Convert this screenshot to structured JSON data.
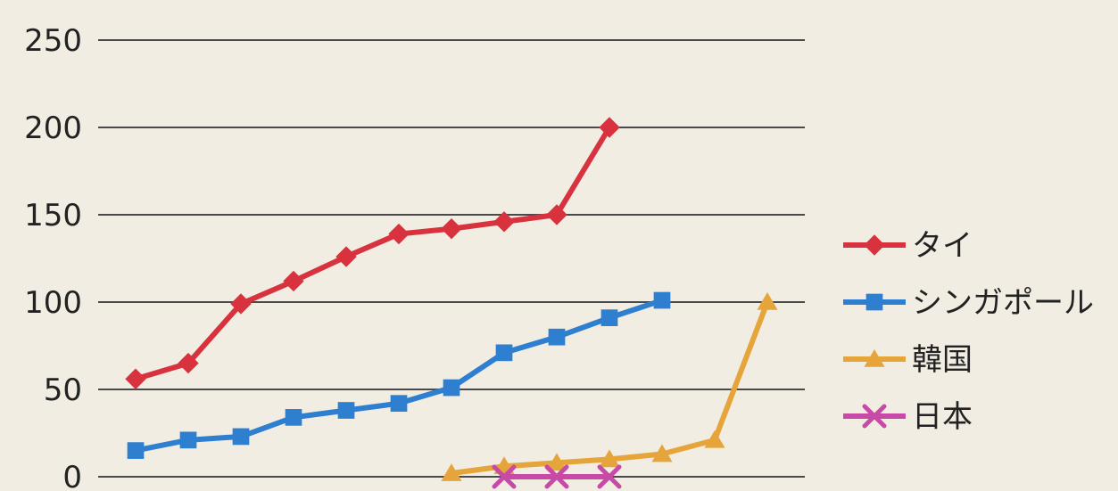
{
  "chart_data": {
    "type": "line",
    "title": "",
    "xlabel": "",
    "ylabel": "",
    "ylim": [
      0,
      250
    ],
    "yticks": [
      0,
      50,
      100,
      150,
      200,
      250
    ],
    "grid": true,
    "legend_position": "right",
    "x": [
      1,
      2,
      3,
      4,
      5,
      6,
      7,
      8,
      9,
      10,
      11,
      12,
      13
    ],
    "series": [
      {
        "name": "タイ",
        "marker": "diamond",
        "color": "#d8323f",
        "values": [
          56,
          65,
          99,
          112,
          126,
          139,
          142,
          146,
          150,
          200,
          null,
          null,
          null
        ]
      },
      {
        "name": "シンガポール",
        "marker": "square",
        "color": "#2f7fd0",
        "values": [
          15,
          21,
          23,
          34,
          38,
          42,
          51,
          71,
          80,
          91,
          101,
          null,
          null
        ]
      },
      {
        "name": "韓国",
        "marker": "triangle",
        "color": "#e5a53a",
        "values": [
          null,
          null,
          null,
          null,
          null,
          null,
          2,
          6,
          8,
          10,
          13,
          21,
          100
        ]
      },
      {
        "name": "日本",
        "marker": "x",
        "color": "#c64aa6",
        "values": [
          null,
          null,
          null,
          null,
          null,
          null,
          null,
          0,
          0,
          0,
          null,
          null,
          null
        ]
      }
    ]
  }
}
